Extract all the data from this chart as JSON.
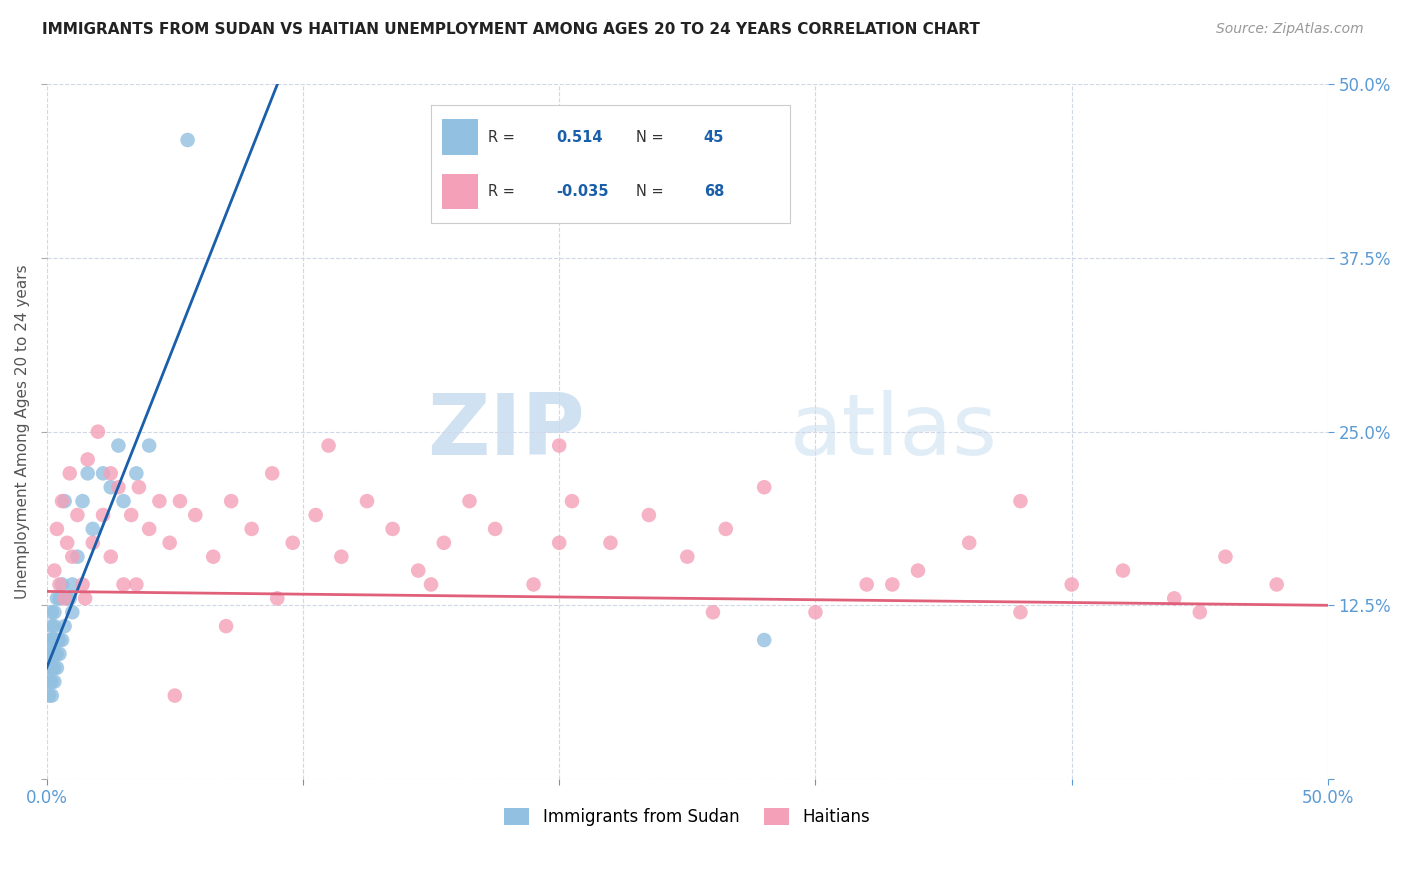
{
  "title": "IMMIGRANTS FROM SUDAN VS HAITIAN UNEMPLOYMENT AMONG AGES 20 TO 24 YEARS CORRELATION CHART",
  "source": "Source: ZipAtlas.com",
  "ylabel": "Unemployment Among Ages 20 to 24 years",
  "xlim": [
    0.0,
    0.5
  ],
  "ylim": [
    0.0,
    0.5
  ],
  "xticks": [
    0.0,
    0.1,
    0.2,
    0.3,
    0.4,
    0.5
  ],
  "yticks": [
    0.0,
    0.125,
    0.25,
    0.375,
    0.5
  ],
  "xticklabels": [
    "0.0%",
    "",
    "",
    "",
    "",
    "50.0%"
  ],
  "yticklabels_right": [
    "",
    "12.5%",
    "25.0%",
    "37.5%",
    "50.0%"
  ],
  "legend_r_sudan": "0.514",
  "legend_n_sudan": "45",
  "legend_r_haitian": "-0.035",
  "legend_n_haitian": "68",
  "legend_label_sudan": "Immigrants from Sudan",
  "legend_label_haitian": "Haitians",
  "color_sudan": "#92c0e0",
  "color_haitian": "#f4a0b8",
  "color_line_sudan": "#1a5faa",
  "color_line_haitian": "#e0607a",
  "color_dashed": "#c0c8d8",
  "watermark_zip": "ZIP",
  "watermark_atlas": "atlas",
  "background_color": "#ffffff",
  "sudan_x": [
    0.001,
    0.001,
    0.001,
    0.001,
    0.001,
    0.002,
    0.002,
    0.002,
    0.002,
    0.002,
    0.002,
    0.002,
    0.003,
    0.003,
    0.003,
    0.003,
    0.003,
    0.003,
    0.004,
    0.004,
    0.004,
    0.004,
    0.005,
    0.005,
    0.005,
    0.006,
    0.006,
    0.007,
    0.007,
    0.008,
    0.009,
    0.01,
    0.01,
    0.012,
    0.014,
    0.016,
    0.018,
    0.022,
    0.025,
    0.028,
    0.03,
    0.035,
    0.04,
    0.055,
    0.28
  ],
  "sudan_y": [
    0.06,
    0.07,
    0.08,
    0.09,
    0.1,
    0.06,
    0.07,
    0.08,
    0.09,
    0.1,
    0.11,
    0.12,
    0.07,
    0.08,
    0.09,
    0.1,
    0.11,
    0.12,
    0.08,
    0.09,
    0.1,
    0.13,
    0.09,
    0.1,
    0.13,
    0.1,
    0.14,
    0.11,
    0.2,
    0.13,
    0.13,
    0.12,
    0.14,
    0.16,
    0.2,
    0.22,
    0.18,
    0.22,
    0.21,
    0.24,
    0.2,
    0.22,
    0.24,
    0.46,
    0.1
  ],
  "haitian_x": [
    0.003,
    0.004,
    0.005,
    0.006,
    0.007,
    0.008,
    0.009,
    0.01,
    0.012,
    0.014,
    0.016,
    0.018,
    0.02,
    0.022,
    0.025,
    0.028,
    0.03,
    0.033,
    0.036,
    0.04,
    0.044,
    0.048,
    0.052,
    0.058,
    0.065,
    0.072,
    0.08,
    0.088,
    0.096,
    0.105,
    0.115,
    0.125,
    0.135,
    0.145,
    0.155,
    0.165,
    0.175,
    0.19,
    0.205,
    0.22,
    0.235,
    0.25,
    0.265,
    0.28,
    0.3,
    0.32,
    0.34,
    0.36,
    0.38,
    0.4,
    0.42,
    0.44,
    0.46,
    0.48,
    0.015,
    0.025,
    0.035,
    0.05,
    0.07,
    0.09,
    0.11,
    0.15,
    0.2,
    0.26,
    0.33,
    0.2,
    0.38,
    0.45
  ],
  "haitian_y": [
    0.15,
    0.18,
    0.14,
    0.2,
    0.13,
    0.17,
    0.22,
    0.16,
    0.19,
    0.14,
    0.23,
    0.17,
    0.25,
    0.19,
    0.22,
    0.21,
    0.14,
    0.19,
    0.21,
    0.18,
    0.2,
    0.17,
    0.2,
    0.19,
    0.16,
    0.2,
    0.18,
    0.22,
    0.17,
    0.19,
    0.16,
    0.2,
    0.18,
    0.15,
    0.17,
    0.2,
    0.18,
    0.14,
    0.2,
    0.17,
    0.19,
    0.16,
    0.18,
    0.21,
    0.12,
    0.14,
    0.15,
    0.17,
    0.12,
    0.14,
    0.15,
    0.13,
    0.16,
    0.14,
    0.13,
    0.16,
    0.14,
    0.06,
    0.11,
    0.13,
    0.24,
    0.14,
    0.24,
    0.12,
    0.14,
    0.17,
    0.2,
    0.12
  ],
  "blue_line_x": [
    0.0,
    0.09
  ],
  "blue_line_y": [
    0.08,
    0.5
  ],
  "pink_line_x": [
    0.0,
    0.5
  ],
  "pink_line_y": [
    0.135,
    0.125
  ]
}
